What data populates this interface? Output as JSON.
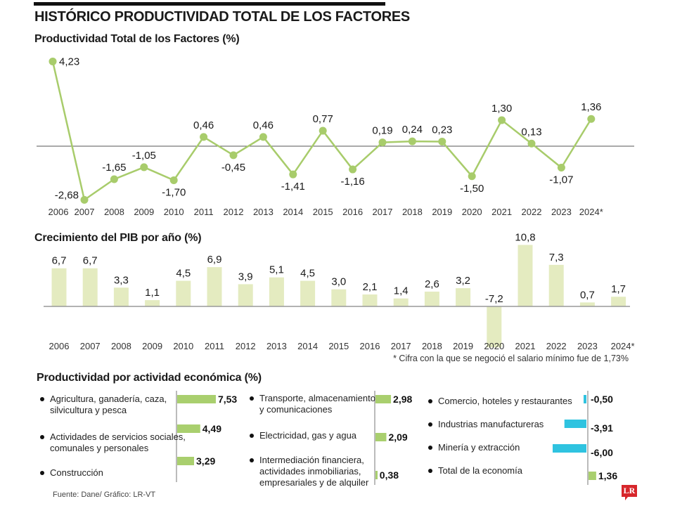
{
  "header": {
    "title": "HISTÓRICO PRODUCTIVIDAD TOTAL DE LOS FACTORES"
  },
  "colors": {
    "line_green": "#a8cc6b",
    "bar_green_light": "#e4ebc0",
    "bar_green": "#a9cf6e",
    "bar_cyan": "#2fc3e0",
    "axis": "#555555",
    "brand_red": "#d7262b"
  },
  "chart_data": [
    {
      "type": "line",
      "title": "Productividad Total de los Factores (%)",
      "categories": [
        "2006",
        "2007",
        "2008",
        "2009",
        "2010",
        "2011",
        "2012",
        "2013",
        "2014",
        "2015",
        "2016",
        "2017",
        "2018",
        "2019",
        "2020",
        "2021",
        "2022",
        "2023",
        "2024*"
      ],
      "values": [
        4.23,
        -2.68,
        -1.65,
        -1.05,
        -1.7,
        0.46,
        -0.45,
        0.46,
        -1.41,
        0.77,
        -1.16,
        0.19,
        0.24,
        0.23,
        -1.5,
        1.3,
        0.13,
        -1.07,
        1.36
      ],
      "labels": [
        "4,23",
        "-2,68",
        "-1,65",
        "-1,05",
        "-1,70",
        "0,46",
        "-0,45",
        "0,46",
        "-1,41",
        "0,77",
        "-1,16",
        "0,19",
        "0,24",
        "0,23",
        "-1,50",
        "1,30",
        "0,13",
        "-1,07",
        "1,36"
      ],
      "xlabel": "",
      "ylabel": "",
      "baseline": 0,
      "grid": false
    },
    {
      "type": "bar",
      "title": "Crecimiento del PIB por año (%)",
      "categories": [
        "2006",
        "2007",
        "2008",
        "2009",
        "2010",
        "2011",
        "2012",
        "2013",
        "2014",
        "2015",
        "2016",
        "2017",
        "2018",
        "2019",
        "2020",
        "2021",
        "2022",
        "2023",
        "2024*"
      ],
      "values": [
        6.7,
        6.7,
        3.3,
        1.1,
        4.5,
        6.9,
        3.9,
        5.1,
        4.5,
        3.0,
        2.1,
        1.4,
        2.6,
        3.2,
        -7.2,
        10.8,
        7.3,
        0.7,
        1.7
      ],
      "labels": [
        "6,7",
        "6,7",
        "3,3",
        "1,1",
        "4,5",
        "6,9",
        "3,9",
        "5,1",
        "4,5",
        "3,0",
        "2,1",
        "1,4",
        "2,6",
        "3,2",
        "-7,2",
        "10,8",
        "7,3",
        "0,7",
        "1,7"
      ],
      "note": "* Cifra con la que se negoció el salario mínimo fue de 1,73%",
      "baseline": 0,
      "grid": false
    },
    {
      "type": "bar",
      "orientation": "horizontal",
      "title": "Productividad por actividad económica (%)",
      "groups": [
        {
          "items": [
            {
              "name": "Agricultura, ganadería, caza, silvicultura y pesca",
              "value": 7.53,
              "label": "7,53"
            },
            {
              "name": "Actividades de servicios sociales, comunales y personales",
              "value": 4.49,
              "label": "4,49"
            },
            {
              "name": "Construcción",
              "value": 3.29,
              "label": "3,29"
            }
          ]
        },
        {
          "items": [
            {
              "name": "Transporte, almacenamiento y comunicaciones",
              "value": 2.98,
              "label": "2,98"
            },
            {
              "name": "Electricidad, gas y agua",
              "value": 2.09,
              "label": "2,09"
            },
            {
              "name": "Intermediación financiera, actividades inmobiliarias, empresariales y de alquiler",
              "value": 0.38,
              "label": "0,38"
            }
          ]
        },
        {
          "items": [
            {
              "name": "Comercio, hoteles y restaurantes",
              "value": -0.5,
              "label": "-0,50"
            },
            {
              "name": "Industrias manufactureras",
              "value": -3.91,
              "label": "-3,91"
            },
            {
              "name": "Minería y extracción",
              "value": -6.0,
              "label": "-6,00"
            },
            {
              "name": "Total de la economía",
              "value": 1.36,
              "label": "1,36"
            }
          ]
        }
      ]
    }
  ],
  "activities_text": {
    "col1": [
      "Agricultura, ganadería, caza,",
      "silvicultura y pesca",
      "Actividades de servicios sociales,",
      "comunales y personales",
      "Construcción"
    ],
    "col2": [
      "Transporte, almacenamiento",
      "y comunicaciones",
      "Electricidad, gas y agua",
      "Intermediación financiera,",
      "actividades inmobiliarias,",
      "empresariales y de alquiler"
    ],
    "col3": [
      "Comercio, hoteles y restaurantes",
      "Industrias manufactureras",
      "Minería y extracción",
      "Total de la economía"
    ]
  },
  "footer": {
    "source": "Fuente: Dane/ Gráfico: LR-VT",
    "logo": "LR"
  }
}
